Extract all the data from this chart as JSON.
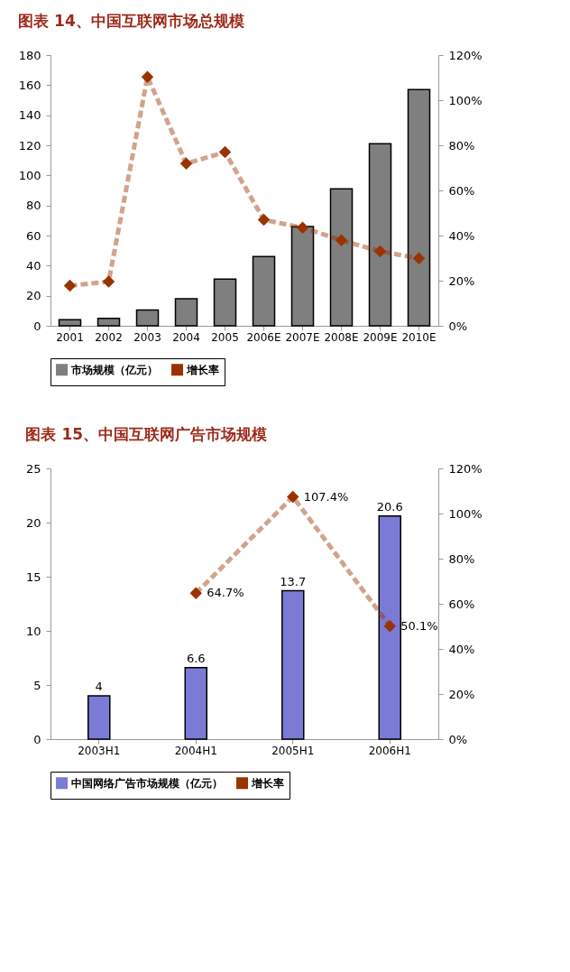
{
  "chart_data": [
    {
      "type": "bar",
      "title": "图表 14、中国互联网市场总规模",
      "categories": [
        "2001",
        "2002",
        "2003",
        "2004",
        "2005",
        "2006E",
        "2007E",
        "2008E",
        "2009E",
        "2010E"
      ],
      "series": [
        {
          "name": "市场规模（亿元）",
          "color": "#7f7f7f",
          "values": [
            4,
            5,
            10.5,
            18,
            31,
            46,
            66,
            91,
            121,
            157
          ]
        },
        {
          "name": "增长率",
          "type": "line",
          "axis": "y2",
          "color": "#993300",
          "values": [
            17.8,
            19.6,
            110.3,
            71.9,
            77,
            47,
            43.5,
            37.9,
            33,
            29.9
          ]
        }
      ],
      "ylim": [
        0,
        180
      ],
      "yticks": [
        0,
        20,
        40,
        60,
        80,
        100,
        120,
        140,
        160,
        180
      ],
      "y2lim": [
        0,
        120
      ],
      "y2ticks": [
        {
          "value": 0,
          "label": "0%"
        },
        {
          "value": 20,
          "label": "20%"
        },
        {
          "value": 40,
          "label": "40%"
        },
        {
          "value": 60,
          "label": "60%"
        },
        {
          "value": 80,
          "label": "80%"
        },
        {
          "value": 100,
          "label": "100%"
        },
        {
          "value": 120,
          "label": "120%"
        }
      ],
      "legend": "bottom",
      "grid": false,
      "marker": "diamond",
      "line_style": "dashed"
    },
    {
      "type": "bar",
      "title": "图表 15、中国互联网广告市场规模",
      "categories": [
        "2003H1",
        "2004H1",
        "2005H1",
        "2006H1"
      ],
      "series": [
        {
          "name": "中国网络广告市场规模（亿元）",
          "color": "#7b7bd6",
          "values": [
            4,
            6.6,
            13.7,
            20.6
          ],
          "value_labels": [
            "4",
            "6.6",
            "13.7",
            "20.6"
          ]
        },
        {
          "name": "增长率",
          "type": "line",
          "axis": "y2",
          "color": "#993300",
          "values": [
            null,
            64.7,
            107.4,
            50.1
          ],
          "value_labels": [
            null,
            "64.7%",
            "107.4%",
            "50.1%"
          ]
        }
      ],
      "ylim": [
        0,
        25
      ],
      "yticks": [
        0,
        5,
        10,
        15,
        20,
        25
      ],
      "y2lim": [
        0,
        120
      ],
      "y2ticks": [
        {
          "value": 0,
          "label": "0%"
        },
        {
          "value": 20,
          "label": "20%"
        },
        {
          "value": 40,
          "label": "40%"
        },
        {
          "value": 60,
          "label": "60%"
        },
        {
          "value": 80,
          "label": "80%"
        },
        {
          "value": 100,
          "label": "100%"
        },
        {
          "value": 120,
          "label": "120%"
        }
      ],
      "legend": "bottom",
      "grid": false,
      "marker": "diamond",
      "line_style": "dashed"
    }
  ]
}
